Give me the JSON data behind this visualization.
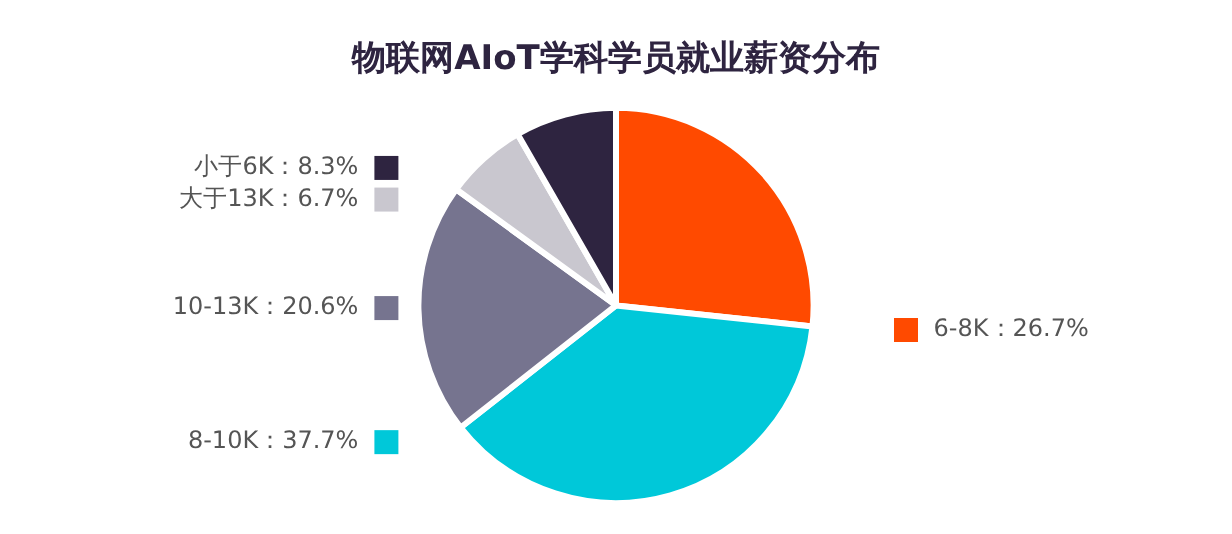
{
  "chart_data": {
    "type": "pie",
    "title": "物联网AIoT学科学员就业薪资分布",
    "categories": [
      "6-8K",
      "8-10K",
      "10-13K",
      "大于13K",
      "小于6K"
    ],
    "values": [
      26.7,
      37.7,
      20.6,
      6.7,
      8.3
    ],
    "colors": [
      "#ff4a00",
      "#00c8d9",
      "#76748f",
      "#c9c7cf",
      "#2e2440"
    ],
    "value_labels": [
      "26.7%",
      "37.7%",
      "20.6%",
      "6.7%",
      "8.3%"
    ],
    "legend": "left"
  }
}
